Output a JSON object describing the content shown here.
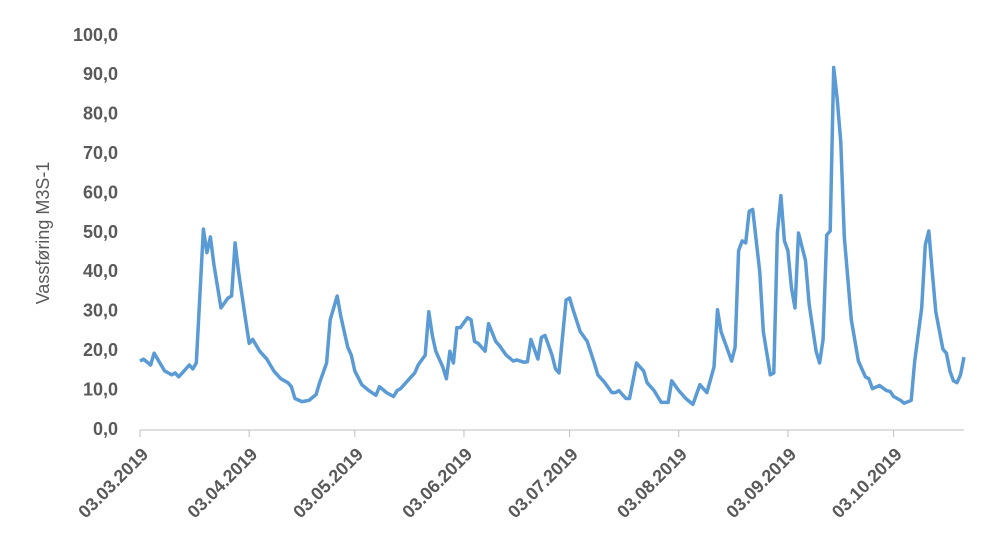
{
  "chart_data": {
    "type": "line",
    "y_label": "Vassføring M3S-1",
    "series": [
      {
        "name": "Vassføring",
        "color": "#5b9bd5",
        "x": [
          "03.03.2019",
          "04.03.2019",
          "06.03.2019",
          "07.03.2019",
          "10.03.2019",
          "12.03.2019",
          "13.03.2019",
          "14.03.2019",
          "15.03.2019",
          "17.03.2019",
          "18.03.2019",
          "19.03.2019",
          "21.03.2019",
          "22.03.2019",
          "23.03.2019",
          "24.03.2019",
          "26.03.2019",
          "28.03.2019",
          "29.03.2019",
          "30.03.2019",
          "31.03.2019",
          "02.04.2019",
          "03.04.2019",
          "04.04.2019",
          "06.04.2019",
          "08.04.2019",
          "10.04.2019",
          "12.04.2019",
          "14.04.2019",
          "15.04.2019",
          "16.04.2019",
          "18.04.2019",
          "20.04.2019",
          "22.04.2019",
          "23.04.2019",
          "25.04.2019",
          "26.04.2019",
          "28.04.2019",
          "29.04.2019",
          "30.04.2019",
          "01.05.2019",
          "02.05.2019",
          "03.05.2019",
          "05.05.2019",
          "07.05.2019",
          "09.05.2019",
          "10.05.2019",
          "12.05.2019",
          "14.05.2019",
          "15.05.2019",
          "16.05.2019",
          "18.05.2019",
          "20.05.2019",
          "21.05.2019",
          "23.05.2019",
          "24.05.2019",
          "25.05.2019",
          "26.05.2019",
          "28.05.2019",
          "29.05.2019",
          "30.05.2019",
          "31.05.2019",
          "01.06.2019",
          "02.06.2019",
          "04.06.2019",
          "05.06.2019",
          "06.06.2019",
          "07.06.2019",
          "09.06.2019",
          "10.06.2019",
          "12.06.2019",
          "13.06.2019",
          "15.06.2019",
          "17.06.2019",
          "18.06.2019",
          "20.06.2019",
          "21.06.2019",
          "22.06.2019",
          "24.06.2019",
          "25.06.2019",
          "26.06.2019",
          "28.06.2019",
          "29.06.2019",
          "30.06.2019",
          "02.07.2019",
          "03.07.2019",
          "04.07.2019",
          "06.07.2019",
          "08.07.2019",
          "10.07.2019",
          "11.07.2019",
          "13.07.2019",
          "15.07.2019",
          "16.07.2019",
          "17.07.2019",
          "19.07.2019",
          "20.07.2019",
          "22.07.2019",
          "24.07.2019",
          "25.07.2019",
          "27.07.2019",
          "29.07.2019",
          "31.07.2019",
          "01.08.2019",
          "03.08.2019",
          "05.08.2019",
          "07.08.2019",
          "08.08.2019",
          "09.08.2019",
          "11.08.2019",
          "13.08.2019",
          "14.08.2019",
          "15.08.2019",
          "17.08.2019",
          "18.08.2019",
          "19.08.2019",
          "20.08.2019",
          "21.08.2019",
          "22.08.2019",
          "23.08.2019",
          "24.08.2019",
          "26.08.2019",
          "27.08.2019",
          "29.08.2019",
          "30.08.2019",
          "31.08.2019",
          "01.09.2019",
          "02.09.2019",
          "03.09.2019",
          "04.09.2019",
          "05.09.2019",
          "06.09.2019",
          "08.09.2019",
          "09.09.2019",
          "11.09.2019",
          "12.09.2019",
          "13.09.2019",
          "14.09.2019",
          "15.09.2019",
          "16.09.2019",
          "17.09.2019",
          "18.09.2019",
          "19.09.2019",
          "21.09.2019",
          "23.09.2019",
          "25.09.2019",
          "26.09.2019",
          "27.09.2019",
          "29.09.2019",
          "01.10.2019",
          "02.10.2019",
          "03.10.2019",
          "05.10.2019",
          "06.10.2019",
          "08.10.2019",
          "09.10.2019",
          "11.10.2019",
          "12.10.2019",
          "13.10.2019",
          "14.10.2019",
          "15.10.2019",
          "17.10.2019",
          "18.10.2019",
          "19.10.2019",
          "20.10.2019",
          "21.10.2019",
          "22.10.2019",
          "23.10.2019"
        ],
        "values": [
          17.5,
          18,
          16.5,
          19.5,
          15,
          14,
          14.5,
          13.5,
          14.5,
          16.5,
          15.5,
          17,
          51,
          45,
          49,
          42,
          31,
          33.5,
          34,
          47.5,
          40,
          28,
          22,
          23,
          20,
          18,
          15,
          13,
          12,
          11,
          8,
          7.2,
          7.5,
          9,
          12,
          17,
          28,
          34,
          29,
          25,
          21,
          19,
          15,
          11.5,
          10,
          8.8,
          11,
          9.5,
          8.5,
          10,
          10.5,
          12.5,
          14.5,
          16.5,
          19,
          30,
          24,
          20,
          16,
          13,
          20,
          17,
          26,
          26,
          28.5,
          28,
          22.5,
          22,
          20,
          27,
          22.5,
          21.5,
          19,
          17.5,
          17.8,
          17.2,
          17.3,
          23,
          18,
          23.5,
          24,
          19,
          15.5,
          14.5,
          33,
          33.5,
          30.5,
          25,
          22.5,
          17,
          14,
          12,
          9.5,
          9.5,
          10,
          8,
          8,
          17,
          15,
          12,
          10,
          7,
          7,
          12.5,
          10,
          8,
          6.5,
          9,
          11.5,
          9.5,
          16,
          30.5,
          25,
          20,
          17.5,
          21,
          45.5,
          48,
          47.5,
          55.5,
          56,
          40,
          25,
          14,
          14.5,
          50,
          59.5,
          48,
          45.5,
          36,
          31,
          50,
          43,
          32,
          20,
          17,
          23,
          49.5,
          50.5,
          92,
          84,
          73,
          49,
          28,
          17.5,
          13.5,
          13,
          10.5,
          11.3,
          10,
          9.8,
          8.5,
          7.5,
          6.8,
          7.5,
          17.5,
          31,
          47,
          50.5,
          40,
          30,
          20.5,
          19.5,
          15,
          12.5,
          12,
          14,
          18.5
        ]
      }
    ],
    "xlim": [
      "03.03.2019",
      "23.10.2019"
    ],
    "xticks": [
      "03.03.2019",
      "03.04.2019",
      "03.05.2019",
      "03.06.2019",
      "03.07.2019",
      "03.08.2019",
      "03.09.2019",
      "03.10.2019"
    ],
    "ylim": [
      0,
      100
    ],
    "yticks": [
      {
        "value": 0,
        "label": "0,0"
      },
      {
        "value": 10,
        "label": "10,0"
      },
      {
        "value": 20,
        "label": "20,0"
      },
      {
        "value": 30,
        "label": "30,0"
      },
      {
        "value": 40,
        "label": "40,0"
      },
      {
        "value": 50,
        "label": "50,0"
      },
      {
        "value": 60,
        "label": "60,0"
      },
      {
        "value": 70,
        "label": "70,0"
      },
      {
        "value": 80,
        "label": "80,0"
      },
      {
        "value": 90,
        "label": "90,0"
      },
      {
        "value": 100,
        "label": "100,0"
      }
    ],
    "grid": false
  }
}
